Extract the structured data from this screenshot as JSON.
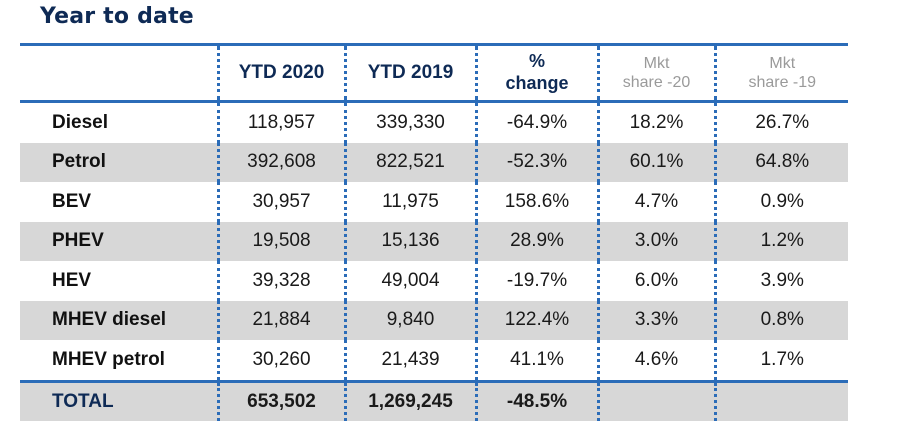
{
  "title": "Year to date",
  "headers": {
    "col1": "YTD 2020",
    "col2": "YTD 2019",
    "col3_line1": "%",
    "col3_line2": "change",
    "col4_line1": "Mkt",
    "col4_line2": "share -20",
    "col5_line1": "Mkt",
    "col5_line2": "share -19"
  },
  "rows": [
    {
      "label": "Diesel",
      "ytd2020": "118,957",
      "ytd2019": "339,330",
      "change": "-64.9%",
      "share20": "18.2%",
      "share19": "26.7%"
    },
    {
      "label": "Petrol",
      "ytd2020": "392,608",
      "ytd2019": "822,521",
      "change": "-52.3%",
      "share20": "60.1%",
      "share19": "64.8%"
    },
    {
      "label": "BEV",
      "ytd2020": "30,957",
      "ytd2019": "11,975",
      "change": "158.6%",
      "share20": "4.7%",
      "share19": "0.9%"
    },
    {
      "label": "PHEV",
      "ytd2020": "19,508",
      "ytd2019": "15,136",
      "change": "28.9%",
      "share20": "3.0%",
      "share19": "1.2%"
    },
    {
      "label": "HEV",
      "ytd2020": "39,328",
      "ytd2019": "49,004",
      "change": "-19.7%",
      "share20": "6.0%",
      "share19": "3.9%"
    },
    {
      "label": "MHEV diesel",
      "ytd2020": "21,884",
      "ytd2019": "9,840",
      "change": "122.4%",
      "share20": "3.3%",
      "share19": "0.8%"
    },
    {
      "label": "MHEV petrol",
      "ytd2020": "30,260",
      "ytd2019": "21,439",
      "change": "41.1%",
      "share20": "4.6%",
      "share19": "1.7%"
    }
  ],
  "total": {
    "label": "TOTAL",
    "ytd2020": "653,502",
    "ytd2019": "1,269,245",
    "change": "-48.5%",
    "share20": "",
    "share19": ""
  },
  "colors": {
    "accent": "#2b6cb8",
    "title": "#0e2a55",
    "shade": "#d7d7d7",
    "muted": "#9a9a9a"
  }
}
